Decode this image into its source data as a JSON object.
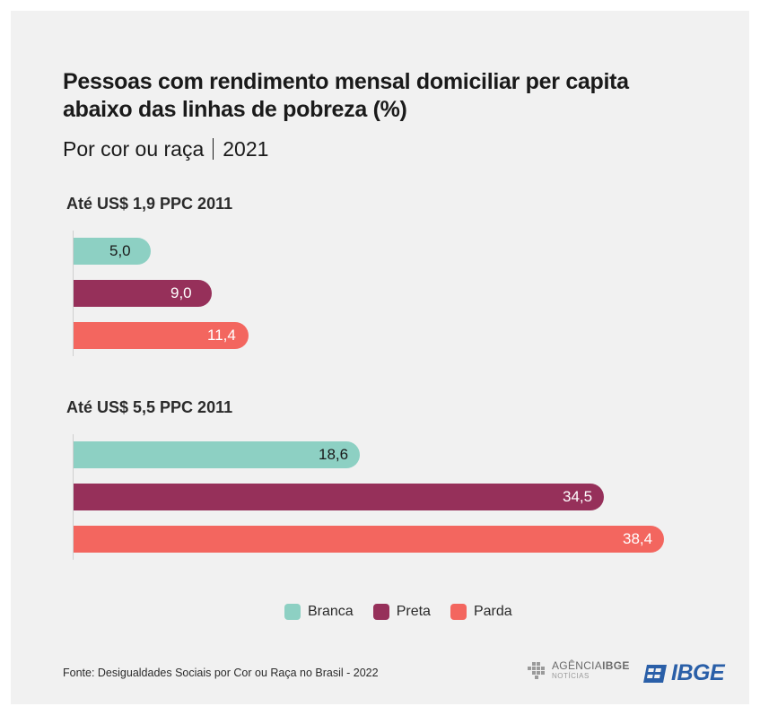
{
  "chart_data": {
    "type": "bar",
    "orientation": "horizontal",
    "title": "Pessoas com rendimento mensal domiciliar per capita abaixo das linhas de pobreza (%)",
    "subtitle_left": "Por cor ou raça",
    "subtitle_right": "2021",
    "xlim": [
      0,
      40
    ],
    "grid": false,
    "legend_position": "bottom",
    "groups": [
      {
        "label": "Até US$ 1,9 PPC 2011",
        "bars": [
          {
            "series": "Branca",
            "value": 5.0,
            "label": "5,0"
          },
          {
            "series": "Preta",
            "value": 9.0,
            "label": "9,0"
          },
          {
            "series": "Parda",
            "value": 11.4,
            "label": "11,4"
          }
        ]
      },
      {
        "label": "Até US$ 5,5 PPC 2011",
        "bars": [
          {
            "series": "Branca",
            "value": 18.6,
            "label": "18,6"
          },
          {
            "series": "Preta",
            "value": 34.5,
            "label": "34,5"
          },
          {
            "series": "Parda",
            "value": 38.4,
            "label": "38,4"
          }
        ]
      }
    ],
    "series": [
      {
        "name": "Branca",
        "color": "#8dd0c3",
        "label_color": "#1a1a1a"
      },
      {
        "name": "Preta",
        "color": "#96305a",
        "label_color": "#ffffff"
      },
      {
        "name": "Parda",
        "color": "#f3665f",
        "label_color": "#ffffff"
      }
    ]
  },
  "footer": {
    "source": "Fonte: Desigualdades Sociais por Cor ou Raça no Brasil - 2022",
    "agencia_name_light": "AGÊNCIA",
    "agencia_name_bold": "IBGE",
    "agencia_sub": "NOTÍCIAS",
    "ibge_logo": "IBGE",
    "logo_color": "#2a5fa8"
  }
}
